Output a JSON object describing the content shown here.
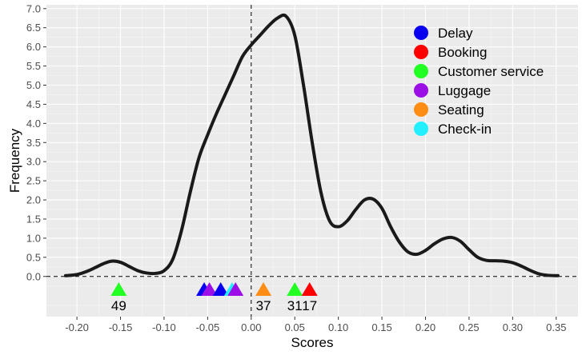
{
  "chart_data": {
    "type": "line",
    "title": "",
    "xlabel": "Scores",
    "ylabel": "Frequency",
    "xlim": [
      -0.235,
      0.375
    ],
    "ylim": [
      -1.05,
      7.1
    ],
    "x_ticks": [
      -0.2,
      -0.15,
      -0.1,
      -0.05,
      0.0,
      0.05,
      0.1,
      0.15,
      0.2,
      0.25,
      0.3,
      0.35
    ],
    "x_tick_labels": [
      "-0.20",
      "-0.15",
      "-0.10",
      "-0.05",
      "0.00",
      "0.05",
      "0.10",
      "0.15",
      "0.20",
      "0.25",
      "0.30",
      "0.35"
    ],
    "y_ticks": [
      0,
      0.5,
      1,
      1.5,
      2,
      2.5,
      3,
      3.5,
      4,
      4.5,
      5,
      5.5,
      6,
      6.5,
      7
    ],
    "y_tick_labels": [
      "0.0",
      "0.5",
      "1.0",
      "1.5",
      "2.0",
      "2.5",
      "3.0",
      "3.5",
      "4.0",
      "4.5",
      "5.0",
      "5.5",
      "6.0",
      "6.5",
      "7.0"
    ],
    "grid": true,
    "background": "#ebebeb",
    "density_color": "#1a1a1a",
    "reference_lines": {
      "vertical_x": 0,
      "horizontal_y": 0
    },
    "density": {
      "x": [
        -0.213,
        -0.2,
        -0.19,
        -0.18,
        -0.17,
        -0.16,
        -0.15,
        -0.14,
        -0.13,
        -0.12,
        -0.11,
        -0.1,
        -0.09,
        -0.08,
        -0.07,
        -0.06,
        -0.05,
        -0.04,
        -0.03,
        -0.02,
        -0.01,
        0.0,
        0.01,
        0.02,
        0.03,
        0.04,
        0.05,
        0.06,
        0.07,
        0.08,
        0.09,
        0.1,
        0.11,
        0.12,
        0.13,
        0.14,
        0.15,
        0.16,
        0.17,
        0.18,
        0.19,
        0.2,
        0.21,
        0.22,
        0.23,
        0.24,
        0.25,
        0.26,
        0.27,
        0.28,
        0.29,
        0.3,
        0.31,
        0.32,
        0.33,
        0.34,
        0.352
      ],
      "y": [
        0.02,
        0.05,
        0.12,
        0.22,
        0.33,
        0.4,
        0.37,
        0.26,
        0.15,
        0.09,
        0.08,
        0.15,
        0.45,
        1.2,
        2.2,
        3.1,
        3.7,
        4.25,
        4.75,
        5.25,
        5.75,
        6.05,
        6.3,
        6.55,
        6.75,
        6.8,
        6.3,
        5.0,
        3.5,
        2.2,
        1.45,
        1.3,
        1.45,
        1.75,
        2.0,
        2.02,
        1.78,
        1.3,
        0.9,
        0.64,
        0.58,
        0.68,
        0.85,
        0.98,
        1.02,
        0.92,
        0.7,
        0.5,
        0.42,
        0.41,
        0.4,
        0.36,
        0.27,
        0.16,
        0.07,
        0.03,
        0.02
      ]
    },
    "markers": [
      {
        "x": -0.152,
        "category": "Customer service",
        "color": "#22ff22"
      },
      {
        "x": -0.054,
        "category": "Delay",
        "color": "#0a00f0"
      },
      {
        "x": -0.048,
        "category": "Luggage",
        "color": "#9b0fe6"
      },
      {
        "x": -0.035,
        "category": "Delay",
        "color": "#0a00f0"
      },
      {
        "x": -0.022,
        "category": "Check-in",
        "color": "#22f0ff"
      },
      {
        "x": -0.018,
        "category": "Luggage",
        "color": "#9b0fe6"
      },
      {
        "x": 0.014,
        "category": "Seating",
        "color": "#ff8c14"
      },
      {
        "x": 0.05,
        "category": "Customer service",
        "color": "#22ff22"
      },
      {
        "x": 0.067,
        "category": "Booking",
        "color": "#ff0000"
      }
    ],
    "marker_labels": [
      {
        "x": -0.152,
        "text": "49"
      },
      {
        "x": 0.014,
        "text": "37"
      },
      {
        "x": 0.05,
        "text": "31"
      },
      {
        "x": 0.067,
        "text": "17"
      }
    ],
    "legend": {
      "position": "top-right",
      "items": [
        {
          "label": "Delay",
          "color": "#0a00f0"
        },
        {
          "label": "Booking",
          "color": "#ff0000"
        },
        {
          "label": "Customer service",
          "color": "#22ff22"
        },
        {
          "label": "Luggage",
          "color": "#9b0fe6"
        },
        {
          "label": "Seating",
          "color": "#ff8c14"
        },
        {
          "label": "Check-in",
          "color": "#22f0ff"
        }
      ]
    }
  }
}
